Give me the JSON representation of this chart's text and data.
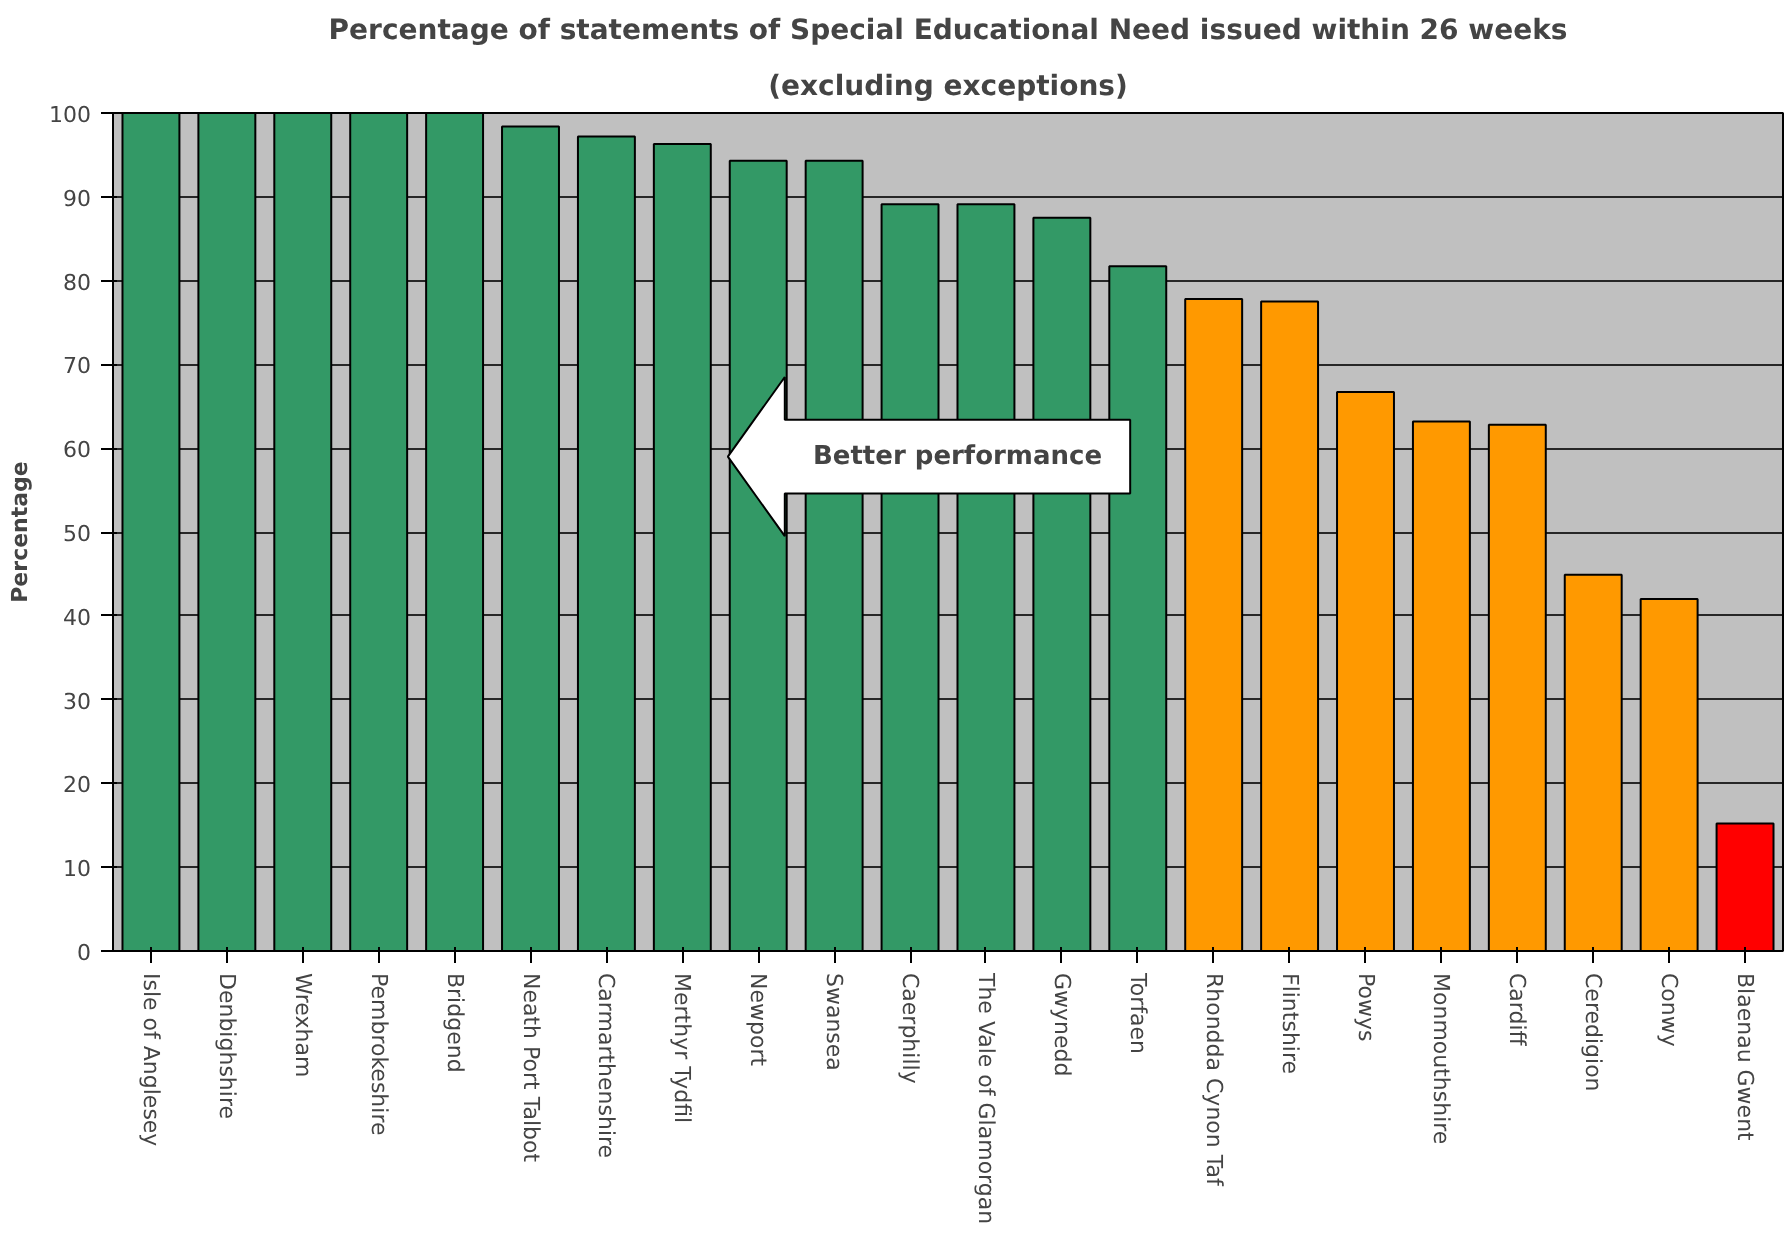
{
  "chart_data": {
    "type": "bar",
    "title": "Percentage of statements of Special Educational Need issued within 26 weeks",
    "subtitle": "(excluding exceptions)",
    "ylabel": "Percentage",
    "categories": [
      "Isle of Anglesey",
      "Denbighshire",
      "Wrexham",
      "Pembrokeshire",
      "Bridgend",
      "Neath Port Talbot",
      "Carmarthenshire",
      "Merthyr Tydfil",
      "Newport",
      "Swansea",
      "Caerphilly",
      "The Vale of Glamorgan",
      "Gwynedd",
      "Torfaen",
      "Rhondda Cynon Taf",
      "Flintshire",
      "Powys",
      "Monmouthshire",
      "Cardiff",
      "Ceredigion",
      "Conwy",
      "Blaenau Gwent"
    ],
    "values": [
      100,
      100,
      100,
      100,
      100,
      98.4,
      97.2,
      96.3,
      94.3,
      94.3,
      89.1,
      89.1,
      87.5,
      81.7,
      77.8,
      77.5,
      66.7,
      63.2,
      62.8,
      44.9,
      42.0,
      15.2
    ],
    "colors": [
      "#339966",
      "#339966",
      "#339966",
      "#339966",
      "#339966",
      "#339966",
      "#339966",
      "#339966",
      "#339966",
      "#339966",
      "#339966",
      "#339966",
      "#339966",
      "#339966",
      "#ff9900",
      "#ff9900",
      "#ff9900",
      "#ff9900",
      "#ff9900",
      "#ff9900",
      "#ff9900",
      "#ff0000"
    ],
    "ylim": [
      0,
      100
    ],
    "yticks": [
      0,
      10,
      20,
      30,
      40,
      50,
      60,
      70,
      80,
      90,
      100
    ],
    "grid": "y",
    "annotations": [
      "Better performance"
    ]
  }
}
